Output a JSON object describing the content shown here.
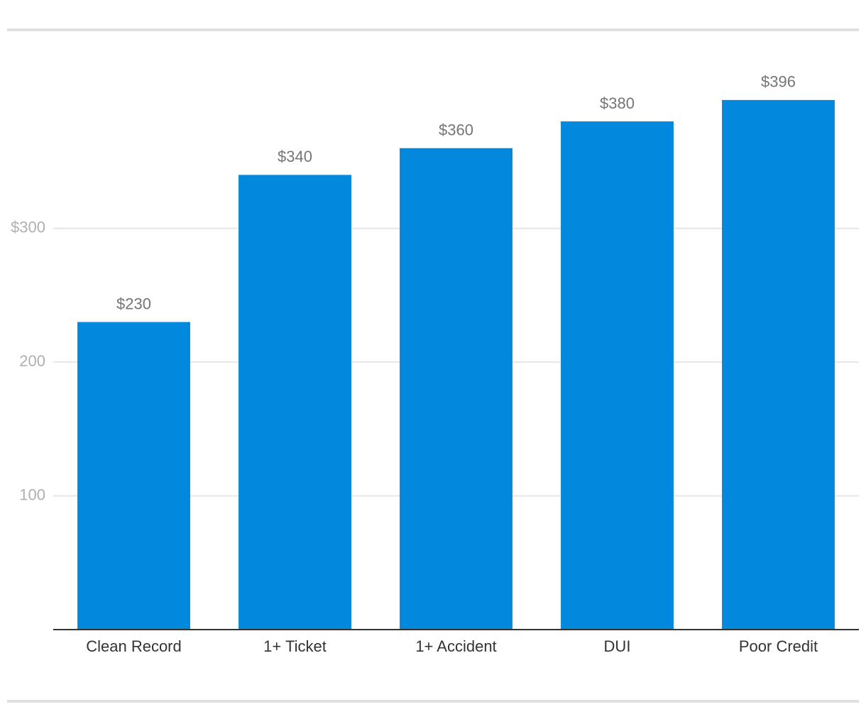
{
  "chart_data": {
    "type": "bar",
    "categories": [
      "Clean Record",
      "1+ Ticket",
      "1+ Accident",
      "DUI",
      "Poor Credit"
    ],
    "values": [
      230,
      340,
      360,
      380,
      396
    ],
    "value_labels": [
      "$230",
      "$340",
      "$360",
      "$380",
      "$396"
    ],
    "color": "#0288dd",
    "ylim": [
      0,
      440
    ],
    "yticks": [
      100,
      200,
      {
        "value": 300,
        "label": "$300"
      }
    ],
    "grid": true
  }
}
